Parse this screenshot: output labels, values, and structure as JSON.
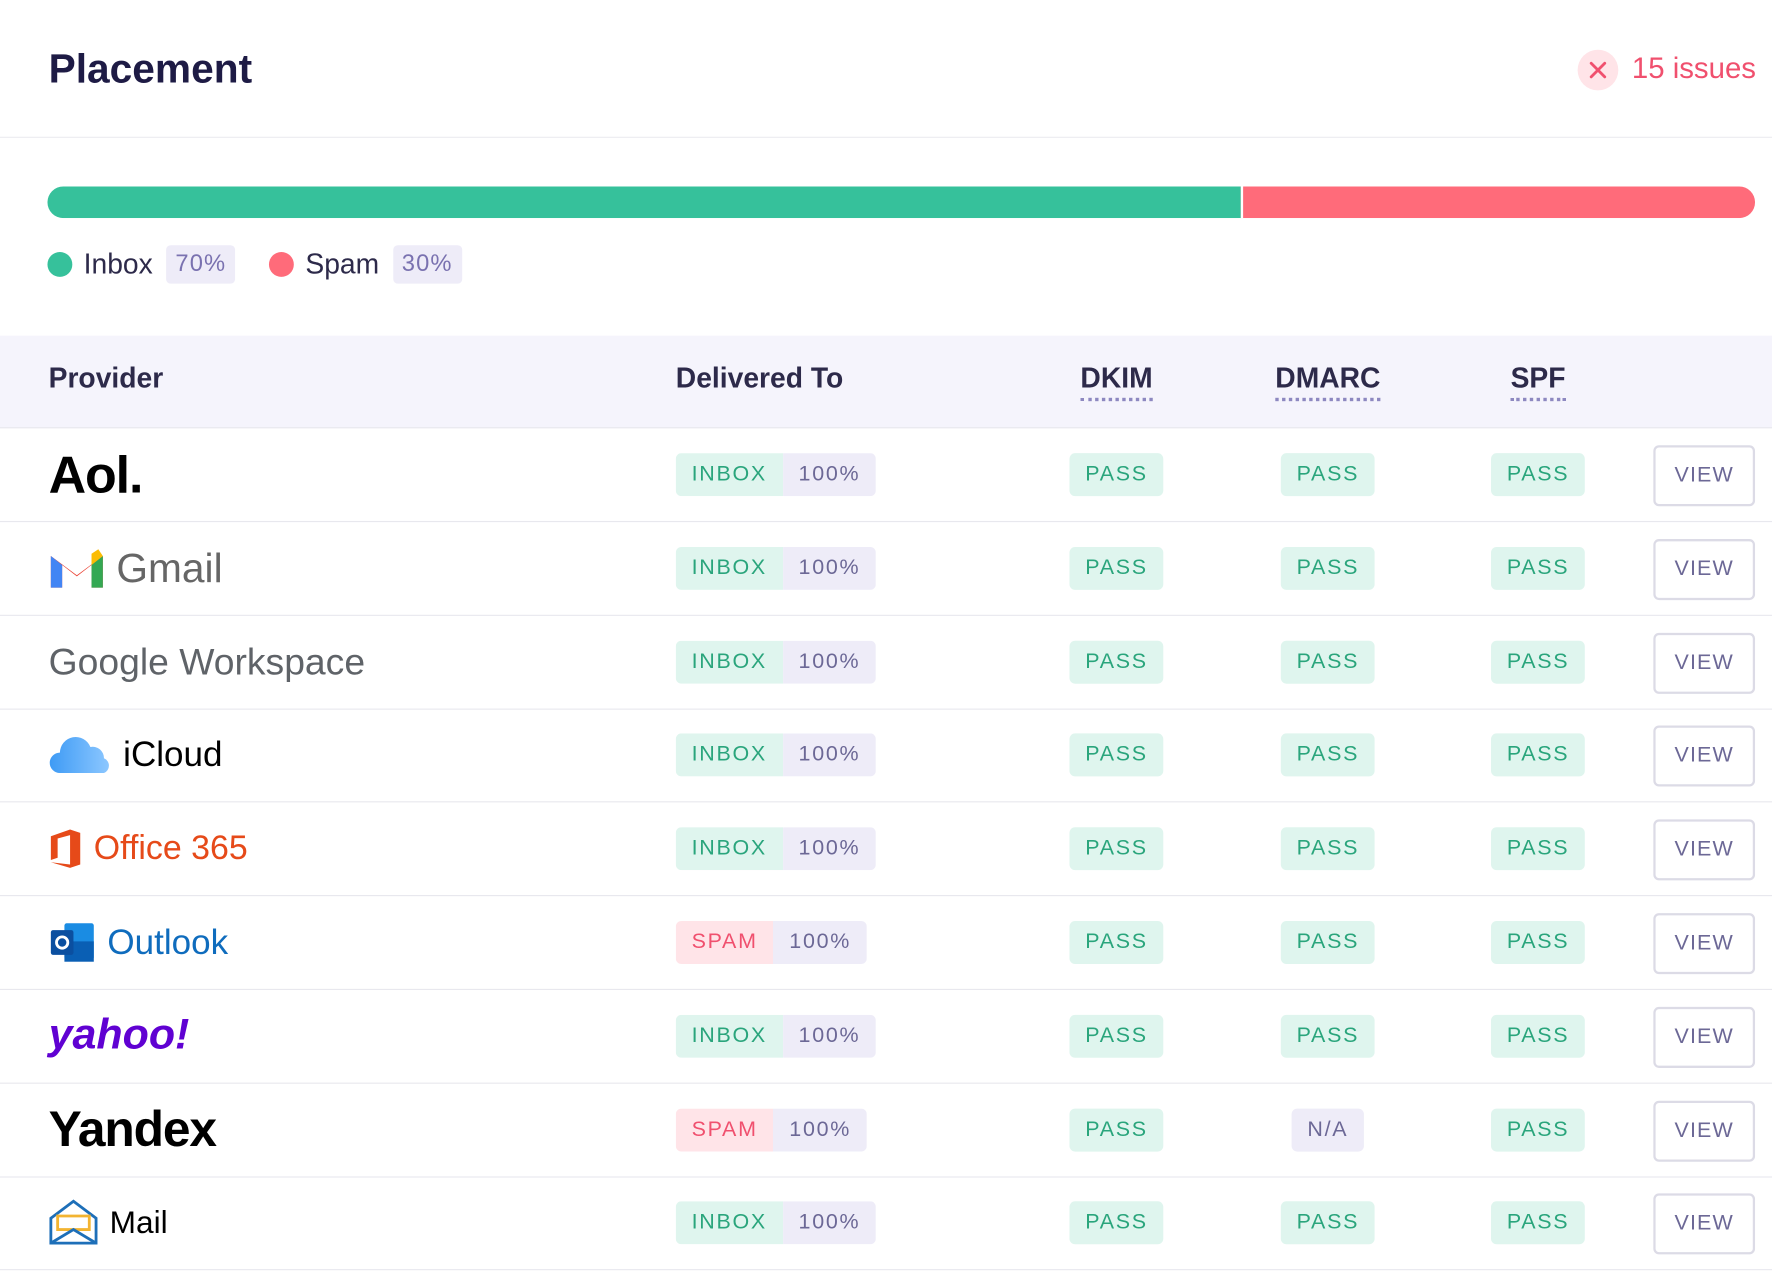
{
  "header": {
    "title": "Placement",
    "issues": "15 issues"
  },
  "placement": {
    "segments": [
      {
        "name": "Inbox",
        "color": "#36c19b",
        "value": 70,
        "value_label": "70%"
      },
      {
        "name": "Spam",
        "color": "#ff6b7a",
        "value": 30,
        "value_label": "30%"
      }
    ]
  },
  "table": {
    "headers": [
      "Provider",
      "Delivered To",
      "DKIM",
      "DMARC",
      "SPF"
    ],
    "rows": [
      {
        "provider": "Aol.",
        "delivered_to": "INBOX",
        "percent": "100%",
        "dkim": "PASS",
        "dmarc": "PASS",
        "spf": "PASS",
        "action": "VIEW"
      },
      {
        "provider": "Gmail",
        "delivered_to": "INBOX",
        "percent": "100%",
        "dkim": "PASS",
        "dmarc": "PASS",
        "spf": "PASS",
        "action": "VIEW"
      },
      {
        "provider": "Google Workspace",
        "delivered_to": "INBOX",
        "percent": "100%",
        "dkim": "PASS",
        "dmarc": "PASS",
        "spf": "PASS",
        "action": "VIEW"
      },
      {
        "provider": "iCloud",
        "delivered_to": "INBOX",
        "percent": "100%",
        "dkim": "PASS",
        "dmarc": "PASS",
        "spf": "PASS",
        "action": "VIEW"
      },
      {
        "provider": "Office 365",
        "delivered_to": "INBOX",
        "percent": "100%",
        "dkim": "PASS",
        "dmarc": "PASS",
        "spf": "PASS",
        "action": "VIEW"
      },
      {
        "provider": "Outlook",
        "delivered_to": "SPAM",
        "percent": "100%",
        "dkim": "PASS",
        "dmarc": "PASS",
        "spf": "PASS",
        "action": "VIEW"
      },
      {
        "provider": "yahoo!",
        "delivered_to": "INBOX",
        "percent": "100%",
        "dkim": "PASS",
        "dmarc": "PASS",
        "spf": "PASS",
        "action": "VIEW"
      },
      {
        "provider": "Yandex",
        "delivered_to": "SPAM",
        "percent": "100%",
        "dkim": "PASS",
        "dmarc": "N/A",
        "spf": "PASS",
        "action": "VIEW"
      },
      {
        "provider": "Mail",
        "delivered_to": "INBOX",
        "percent": "100%",
        "dkim": "PASS",
        "dmarc": "PASS",
        "spf": "PASS",
        "action": "VIEW"
      }
    ]
  }
}
